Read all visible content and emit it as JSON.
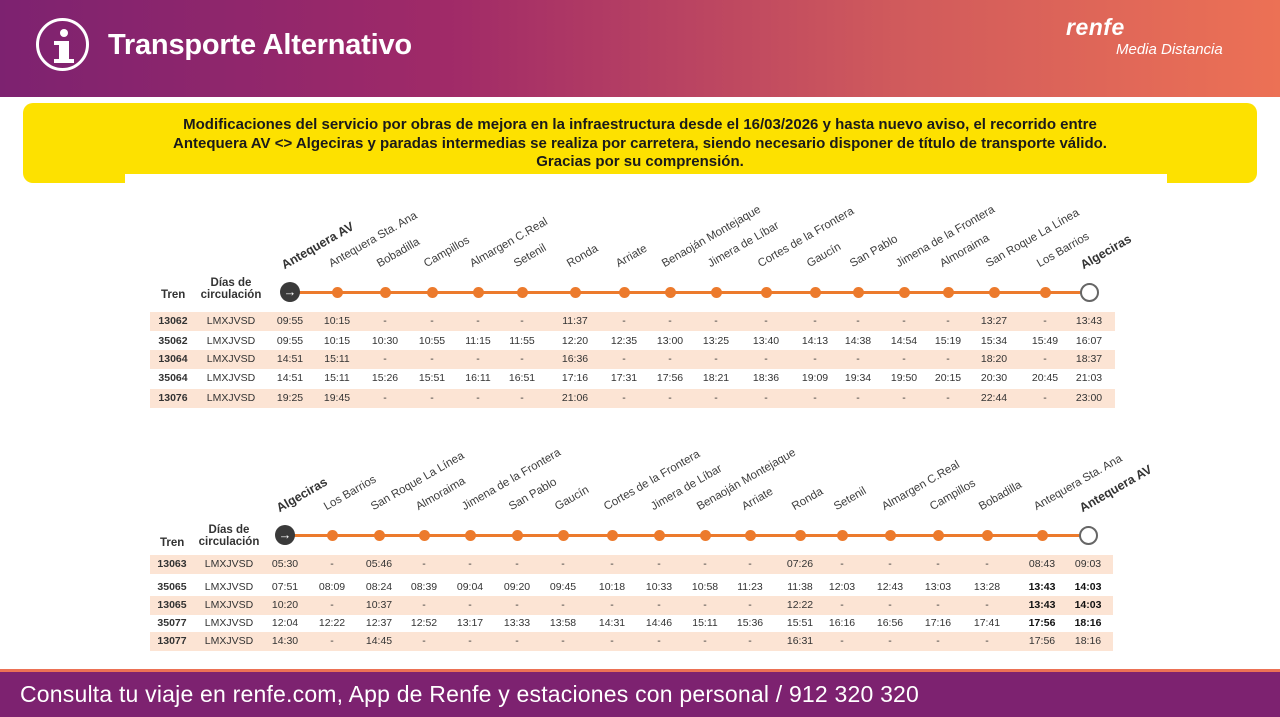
{
  "header": {
    "title": "Transporte Alternativo",
    "brand": "renfe",
    "brand_sub": "Media Distancia"
  },
  "notice": {
    "lines": [
      "Modificaciones del servicio por obras de mejora en la infraestructura desde el 16/03/2026 y hasta nuevo aviso, el recorrido entre",
      "Antequera AV <> Algeciras y paradas intermedias se realiza por carretera, siendo necesario disponer de título de transporte válido.",
      "Gracias por su comprensión."
    ]
  },
  "colors": {
    "accent": "#ec7a2c",
    "band": "#fce4d4",
    "notice": "#fde100",
    "brand": "#7d2270"
  },
  "timetables": [
    {
      "col_tren": "Tren",
      "col_days": [
        "Días de",
        "circulación"
      ],
      "stations": [
        "Antequera AV",
        "Antequera Sta. Ana",
        "Bobadilla",
        "Campillos",
        "Almargen C.Real",
        "Setenil",
        "Ronda",
        "Arriate",
        "Benaoján Montejaque",
        "Jimera de Líbar",
        "Cortes de la Frontera",
        "Gaucín",
        "San Pablo",
        "Jimena de la Frontera",
        "Almoraima",
        "San Roque La Línea",
        "Los Barrios",
        "Algeciras"
      ],
      "rows": [
        {
          "tren": "13062",
          "dias": "LMXJVSD",
          "times": [
            "09:55",
            "10:15",
            "-",
            "-",
            "-",
            "-",
            "11:37",
            "-",
            "-",
            "-",
            "-",
            "-",
            "-",
            "-",
            "-",
            "13:27",
            "-",
            "13:43"
          ]
        },
        {
          "tren": "35062",
          "dias": "LMXJVSD",
          "times": [
            "09:55",
            "10:15",
            "10:30",
            "10:55",
            "11:15",
            "11:55",
            "12:20",
            "12:35",
            "13:00",
            "13:25",
            "13:40",
            "14:13",
            "14:38",
            "14:54",
            "15:19",
            "15:34",
            "15:49",
            "16:07"
          ]
        },
        {
          "tren": "13064",
          "dias": "LMXJVSD",
          "times": [
            "14:51",
            "15:11",
            "-",
            "-",
            "-",
            "-",
            "16:36",
            "-",
            "-",
            "-",
            "-",
            "-",
            "-",
            "-",
            "-",
            "18:20",
            "-",
            "18:37"
          ]
        },
        {
          "tren": "35064",
          "dias": "LMXJVSD",
          "times": [
            "14:51",
            "15:11",
            "15:26",
            "15:51",
            "16:11",
            "16:51",
            "17:16",
            "17:31",
            "17:56",
            "18:21",
            "18:36",
            "19:09",
            "19:34",
            "19:50",
            "20:15",
            "20:30",
            "20:45",
            "21:03"
          ]
        },
        {
          "tren": "13076",
          "dias": "LMXJVSD",
          "times": [
            "19:25",
            "19:45",
            "-",
            "-",
            "-",
            "-",
            "21:06",
            "-",
            "-",
            "-",
            "-",
            "-",
            "-",
            "-",
            "-",
            "22:44",
            "-",
            "23:00"
          ]
        }
      ]
    },
    {
      "col_tren": "Tren",
      "col_days": [
        "Días de",
        "circulación"
      ],
      "stations": [
        "Algeciras",
        "Los Barrios",
        "San Roque La Línea",
        "Almoraima",
        "Jimena de la Frontera",
        "San Pablo",
        "Gaucín",
        "Cortes de la Frontera",
        "Jimera de Líbar",
        "Benaoján Montejaque",
        "Arriate",
        "Ronda",
        "Setenil",
        "Almargen C.Real",
        "Campillos",
        "Bobadilla",
        "Antequera Sta. Ana",
        "Antequera AV"
      ],
      "rows": [
        {
          "tren": "13063",
          "dias": "LMXJVSD",
          "times": [
            "05:30",
            "-",
            "05:46",
            "-",
            "-",
            "-",
            "-",
            "-",
            "-",
            "-",
            "-",
            "07:26",
            "-",
            "-",
            "-",
            "-",
            "08:43",
            "09:03"
          ]
        },
        {
          "tren": "35065",
          "dias": "LMXJVSD",
          "times": [
            "07:51",
            "08:09",
            "08:24",
            "08:39",
            "09:04",
            "09:20",
            "09:45",
            "10:18",
            "10:33",
            "10:58",
            "11:23",
            "11:38",
            "12:03",
            "12:43",
            "13:03",
            "13:28",
            "13:43",
            "14:03"
          ]
        },
        {
          "tren": "13065",
          "dias": "LMXJVSD",
          "times": [
            "10:20",
            "-",
            "10:37",
            "-",
            "-",
            "-",
            "-",
            "-",
            "-",
            "-",
            "-",
            "12:22",
            "-",
            "-",
            "-",
            "-",
            "13:43",
            "14:03"
          ]
        },
        {
          "tren": "35077",
          "dias": "LMXJVSD",
          "times": [
            "12:04",
            "12:22",
            "12:37",
            "12:52",
            "13:17",
            "13:33",
            "13:58",
            "14:31",
            "14:46",
            "15:11",
            "15:36",
            "15:51",
            "16:16",
            "16:56",
            "17:16",
            "17:41",
            "17:56",
            "18:16"
          ]
        },
        {
          "tren": "13077",
          "dias": "LMXJVSD",
          "times": [
            "14:30",
            "-",
            "14:45",
            "-",
            "-",
            "-",
            "-",
            "-",
            "-",
            "-",
            "-",
            "16:31",
            "-",
            "-",
            "-",
            "-",
            "17:56",
            "18:16"
          ]
        }
      ]
    }
  ],
  "footer": {
    "text": "Consulta tu viaje en renfe.com, App de Renfe y estaciones con personal / 912 320 320"
  }
}
